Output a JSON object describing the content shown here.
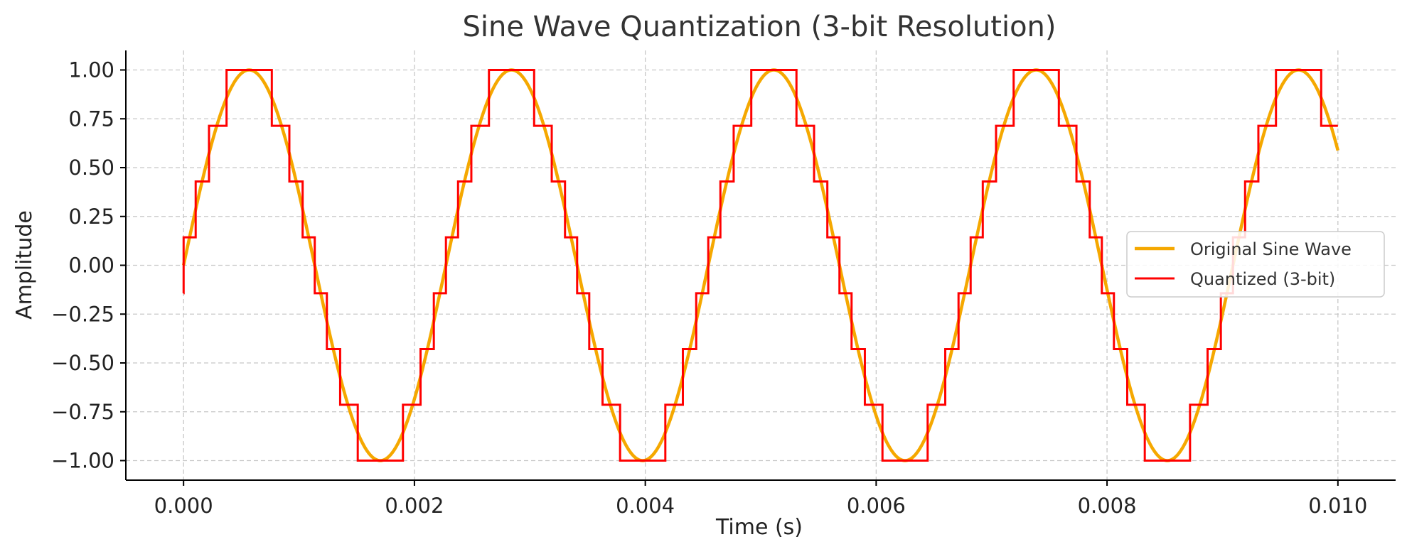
{
  "chart_data": {
    "type": "line",
    "title": "Sine Wave Quantization (3-bit Resolution)",
    "xlabel": "Time (s)",
    "ylabel": "Amplitude",
    "xlim": [
      -0.0005,
      0.0105
    ],
    "ylim": [
      -1.1,
      1.1
    ],
    "x_ticks": [
      0.0,
      0.002,
      0.004,
      0.006,
      0.008,
      0.01
    ],
    "x_tick_labels": [
      "0.000",
      "0.002",
      "0.004",
      "0.006",
      "0.008",
      "0.010"
    ],
    "y_ticks": [
      1.0,
      0.75,
      0.5,
      0.25,
      0.0,
      -0.25,
      -0.5,
      -0.75,
      -1.0
    ],
    "y_tick_labels": [
      "1.00",
      "0.75",
      "0.50",
      "0.25",
      "0.00",
      "−0.25",
      "−0.50",
      "−0.75",
      "−1.00"
    ],
    "grid": true,
    "legend_position": "right",
    "series": [
      {
        "name": "Original Sine Wave",
        "style": "smooth",
        "color": "#F5A800",
        "frequency_hz": 440,
        "amplitude": 1.0,
        "x_range": [
          0.0,
          0.01
        ]
      },
      {
        "name": "Quantized (3-bit)",
        "style": "step",
        "color": "#FF0000",
        "bits": 3,
        "levels": [
          -1.0,
          -0.714,
          -0.429,
          -0.143,
          0.143,
          0.429,
          0.714,
          1.0
        ],
        "x_range": [
          0.0,
          0.01
        ]
      }
    ]
  }
}
